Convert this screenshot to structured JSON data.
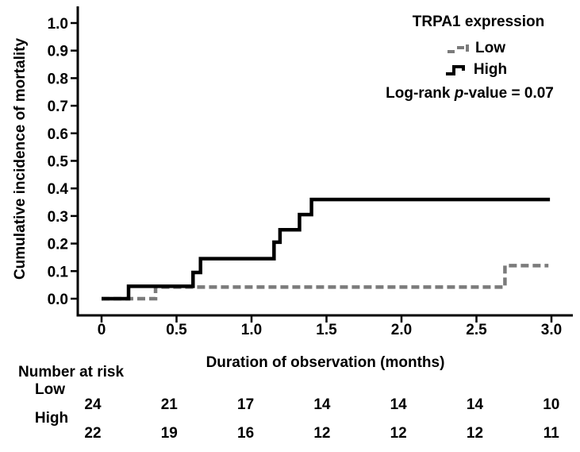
{
  "figure": {
    "y_axis_title": "Cumulative incidence of mortality",
    "x_axis_title": "Duration of observation (months)"
  },
  "legend": {
    "title": "TRPA1 expression",
    "entries": [
      {
        "label": "Low",
        "color": "#7b7b7b",
        "style": "dashed"
      },
      {
        "label": "High",
        "color": "#000000",
        "style": "solid"
      }
    ],
    "logrank_prefix": "Log-rank ",
    "logrank_p": "p",
    "logrank_suffix": "-value = 0.07"
  },
  "risk_table": {
    "header": "Number at risk",
    "rows": [
      {
        "label": "Low",
        "values": [
          "24",
          "21",
          "17",
          "14",
          "14",
          "14",
          "10"
        ]
      },
      {
        "label": "High",
        "values": [
          "22",
          "19",
          "16",
          "12",
          "12",
          "12",
          "11"
        ]
      }
    ]
  },
  "chart_data": {
    "type": "line",
    "subtype": "step-cumulative-incidence",
    "title": "",
    "xlabel": "Duration of observation (months)",
    "ylabel": "Cumulative incidence of mortality",
    "xlim": [
      0,
      3.0
    ],
    "ylim": [
      0.0,
      1.0
    ],
    "grid": false,
    "legend_position": "top-right",
    "legend_title": "TRPA1 expression",
    "annotation": "Log-rank p-value = 0.07",
    "xticks": [
      0,
      0.5,
      1.0,
      1.5,
      2.0,
      2.5,
      3.0
    ],
    "xtick_labels": [
      "0",
      "0.5",
      "1.0",
      "1.5",
      "2.0",
      "2.5",
      "3.0"
    ],
    "ytick_labels": [
      "0.0",
      "0.1",
      "0.2",
      "0.3",
      "0.4",
      "0.5",
      "0.6",
      "0.7",
      "0.8",
      "0.9",
      "1.0"
    ],
    "series": [
      {
        "name": "Low",
        "color": "#7b7b7b",
        "dash": "dashed",
        "steps": [
          [
            0,
            0.0
          ],
          [
            0.36,
            0.042
          ],
          [
            2.69,
            0.12
          ]
        ],
        "end_x": 2.98
      },
      {
        "name": "High",
        "color": "#000000",
        "dash": "solid",
        "steps": [
          [
            0,
            0.0
          ],
          [
            0.18,
            0.045
          ],
          [
            0.61,
            0.095
          ],
          [
            0.66,
            0.145
          ],
          [
            1.15,
            0.205
          ],
          [
            1.19,
            0.25
          ],
          [
            1.32,
            0.305
          ],
          [
            1.4,
            0.36
          ]
        ],
        "end_x": 2.99
      }
    ]
  },
  "colors": {
    "axis": "#000000",
    "background": "#ffffff",
    "low_gray": "#7b7b7b",
    "black": "#000000"
  }
}
